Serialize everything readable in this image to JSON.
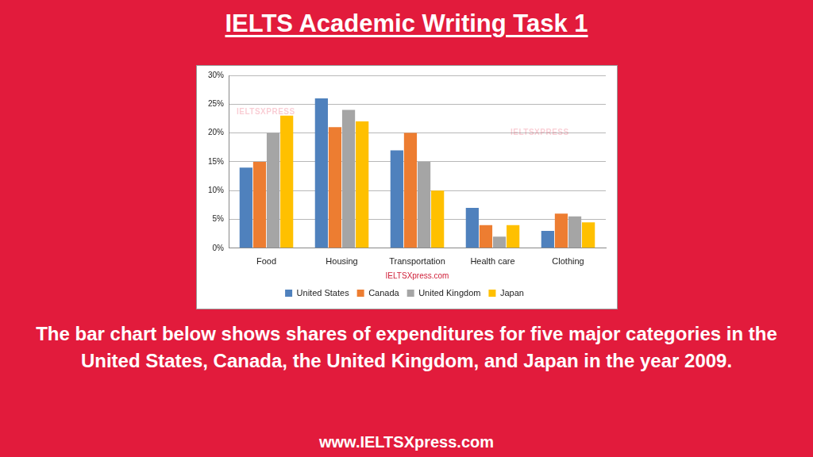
{
  "page": {
    "heading": "IELTS Academic Writing Task 1",
    "caption": "The bar chart below shows shares of expenditures for five major categories in the United States, Canada, the United Kingdom, and Japan in the year 2009.",
    "website": "www.IELTSXpress.com",
    "watermark": "IELTSXPRESS"
  },
  "chart_data": {
    "type": "bar",
    "annotations": [
      "IELTSXpress.com"
    ],
    "categories": [
      "Food",
      "Housing",
      "Transportation",
      "Health care",
      "Clothing"
    ],
    "series": [
      {
        "name": "United States",
        "color": "#4f81bd",
        "values": [
          14,
          26,
          17,
          7,
          3
        ]
      },
      {
        "name": "Canada",
        "color": "#ed7d31",
        "values": [
          15,
          21,
          20,
          4,
          6
        ]
      },
      {
        "name": "United Kingdom",
        "color": "#a5a5a5",
        "values": [
          20,
          24,
          15,
          2,
          5.5
        ]
      },
      {
        "name": "Japan",
        "color": "#ffc000",
        "values": [
          23,
          22,
          10,
          4,
          4.5
        ]
      }
    ],
    "ylim": [
      0,
      30
    ],
    "yticks": [
      {
        "value": 0,
        "label": "0%"
      },
      {
        "value": 5,
        "label": "5%"
      },
      {
        "value": 10,
        "label": "10%"
      },
      {
        "value": 15,
        "label": "15%"
      },
      {
        "value": 20,
        "label": "20%"
      },
      {
        "value": 25,
        "label": "25%"
      },
      {
        "value": 30,
        "label": "30%"
      }
    ],
    "grid": true,
    "legend": "bottom"
  }
}
